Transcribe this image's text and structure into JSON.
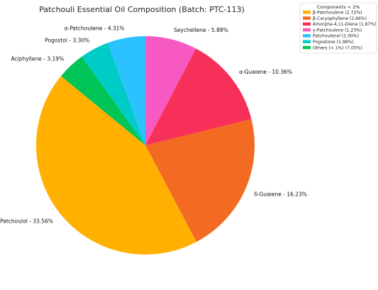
{
  "chart_data": {
    "type": "pie",
    "title": "Patchouli Essential Oil Composition (Batch: PTC-113)",
    "start_angle_deg": 90,
    "direction": "clockwise",
    "slices": [
      {
        "label": "Seychellene - 5.88%",
        "value": 5.88,
        "color": "#f759c2"
      },
      {
        "label": "α-Guaiene - 10.36%",
        "value": 10.36,
        "color": "#f73059"
      },
      {
        "label": "δ-Guaiene - 16.23%",
        "value": 16.23,
        "color": "#f36b22"
      },
      {
        "label": "Patchoulol - 33.56%",
        "value": 33.56,
        "color": "#ffb000"
      },
      {
        "label": "Aciphyllene - 3.19%",
        "value": 3.19,
        "color": "#00c456"
      },
      {
        "label": "Pogostol - 3.30%",
        "value": 3.3,
        "color": "#00ccc7"
      },
      {
        "label": "α-Patchoulene - 4.31%",
        "value": 4.31,
        "color": "#2cc1ff"
      }
    ],
    "legend": {
      "title": "Components < 2%",
      "placement": "top-right",
      "items": [
        {
          "label": "β-Patchoulene (2.72%)",
          "color": "#ffb000"
        },
        {
          "label": "β-Caryophyllene (2.66%)",
          "color": "#f36b22"
        },
        {
          "label": "Amorpha-4,11-Diene (1.87%)",
          "color": "#f73059"
        },
        {
          "label": "γ-Patchoulene (1.23%)",
          "color": "#f759c2"
        },
        {
          "label": "Patchoulenol (1.00%)",
          "color": "#2cc1ff"
        },
        {
          "label": "Pogostone (1.98%)",
          "color": "#00ccc7"
        },
        {
          "label": "Others (< 1%) (7.05%)",
          "color": "#00c456"
        }
      ]
    }
  }
}
